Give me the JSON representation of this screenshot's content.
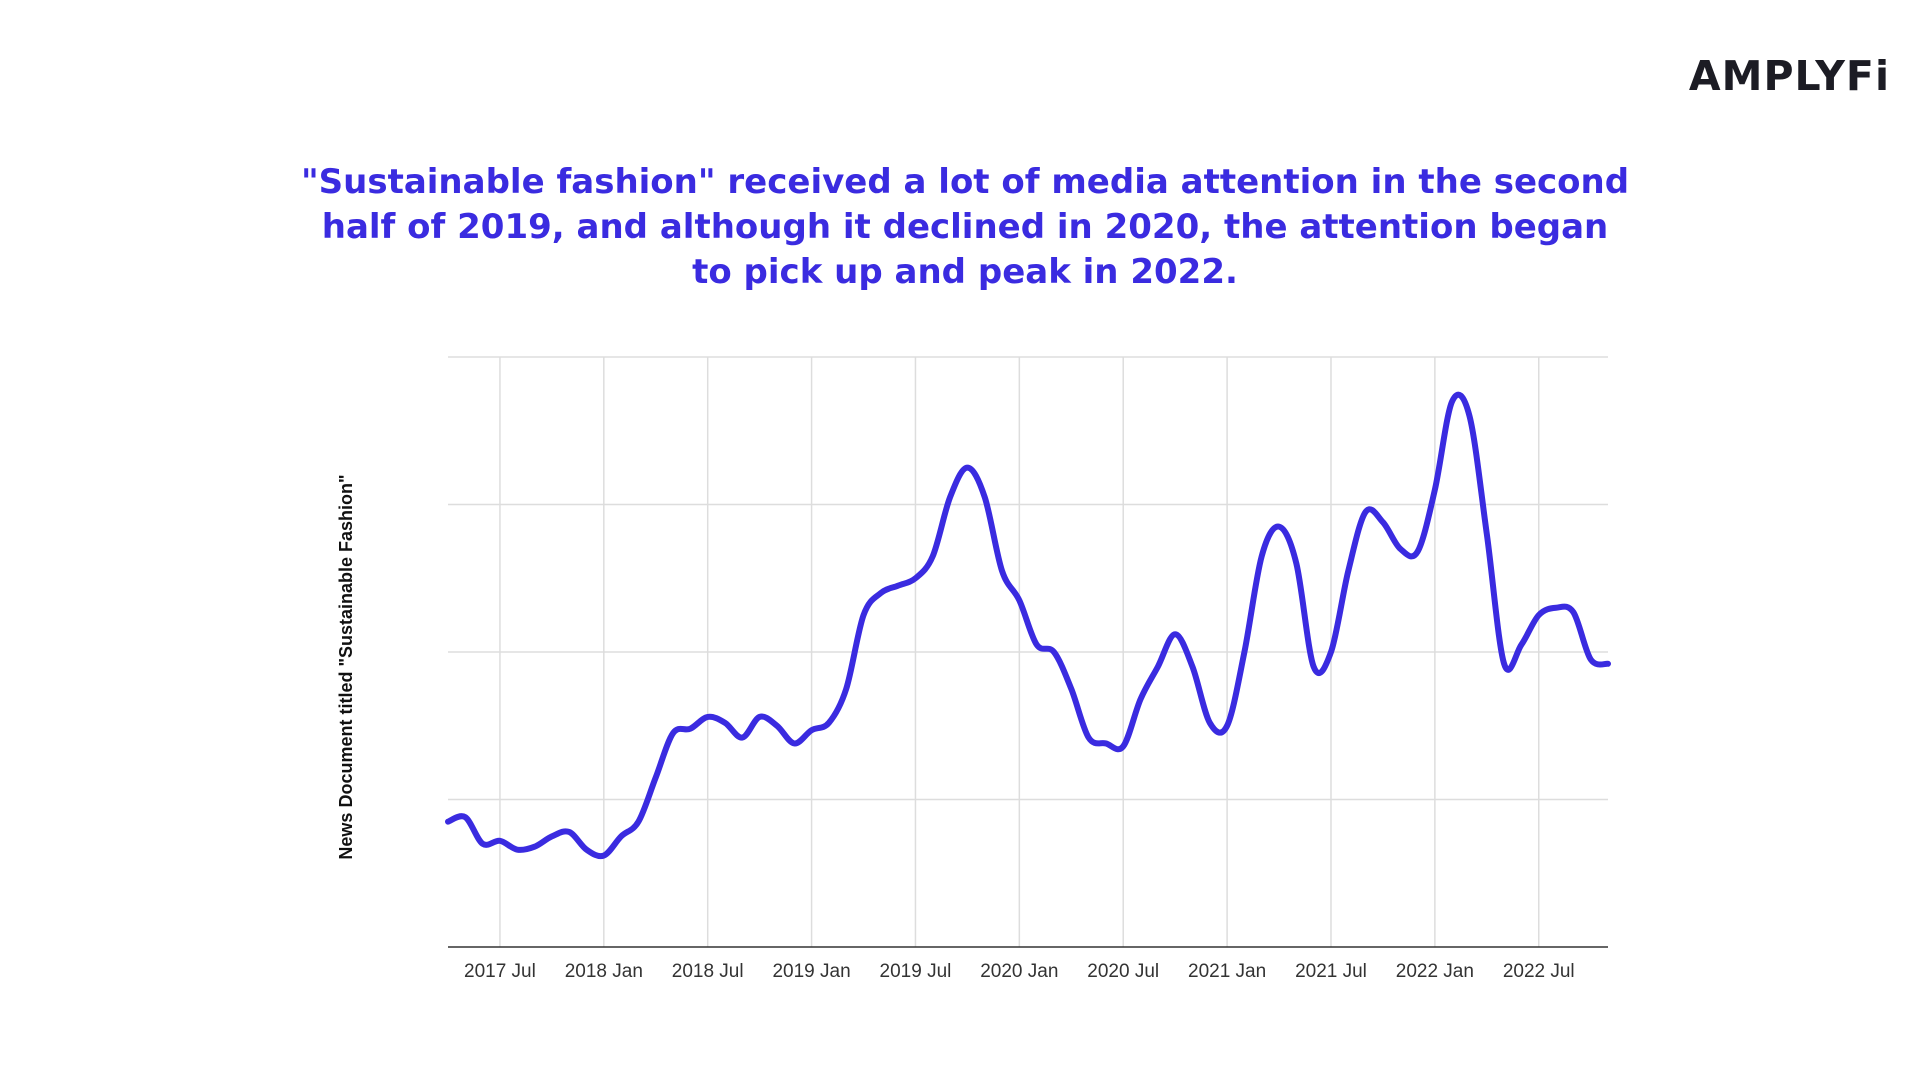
{
  "brand": {
    "logo_text": "AMPLYFi"
  },
  "headline": "\"Sustainable fashion\" received a lot of media attention in the second half of 2019, and although it declined in 2020, the attention began to pick up and peak in 2022.",
  "colors": {
    "headline": "#3a2be0",
    "line": "#3a2be0",
    "grid": "#dddddd",
    "axis": "#333333"
  },
  "chart_data": {
    "type": "line",
    "title": "",
    "xlabel": "",
    "ylabel": "News Document titled \"Sustainable Fashion\"",
    "grid": true,
    "legend": "none",
    "x_ticks": [
      "2017 Jul",
      "2018 Jan",
      "2018 Jul",
      "2019 Jan",
      "2019 Jul",
      "2020 Jan",
      "2020 Jul",
      "2021 Jan",
      "2021 Jul",
      "2022 Jan",
      "2022 Jul"
    ],
    "x_range": [
      "2017-04",
      "2022-11"
    ],
    "y_ticks_shown": false,
    "y_range": [
      0,
      4
    ],
    "series": [
      {
        "name": "",
        "x": [
          "2017-04",
          "2017-05",
          "2017-06",
          "2017-07",
          "2017-08",
          "2017-09",
          "2017-10",
          "2017-11",
          "2017-12",
          "2018-01",
          "2018-02",
          "2018-03",
          "2018-04",
          "2018-05",
          "2018-06",
          "2018-07",
          "2018-08",
          "2018-09",
          "2018-10",
          "2018-11",
          "2018-12",
          "2019-01",
          "2019-02",
          "2019-03",
          "2019-04",
          "2019-05",
          "2019-06",
          "2019-07",
          "2019-08",
          "2019-09",
          "2019-10",
          "2019-11",
          "2019-12",
          "2020-01",
          "2020-02",
          "2020-03",
          "2020-04",
          "2020-05",
          "2020-06",
          "2020-07",
          "2020-08",
          "2020-09",
          "2020-10",
          "2020-11",
          "2020-12",
          "2021-01",
          "2021-02",
          "2021-03",
          "2021-04",
          "2021-05",
          "2021-06",
          "2021-07",
          "2021-08",
          "2021-09",
          "2021-10",
          "2021-11",
          "2021-12",
          "2022-01",
          "2022-02",
          "2022-03",
          "2022-04",
          "2022-05",
          "2022-06",
          "2022-07",
          "2022-08",
          "2022-09",
          "2022-10",
          "2022-11"
        ],
        "values": [
          0.85,
          0.88,
          0.7,
          0.72,
          0.66,
          0.68,
          0.75,
          0.78,
          0.66,
          0.62,
          0.75,
          0.85,
          1.15,
          1.45,
          1.48,
          1.56,
          1.52,
          1.42,
          1.56,
          1.5,
          1.38,
          1.47,
          1.52,
          1.75,
          2.25,
          2.4,
          2.45,
          2.5,
          2.65,
          3.05,
          3.25,
          3.05,
          2.55,
          2.35,
          2.05,
          2.0,
          1.75,
          1.42,
          1.38,
          1.36,
          1.68,
          1.9,
          2.12,
          1.9,
          1.52,
          1.5,
          2.0,
          2.65,
          2.85,
          2.6,
          1.9,
          2.0,
          2.55,
          2.95,
          2.88,
          2.7,
          2.68,
          3.1,
          3.7,
          3.6,
          2.8,
          1.92,
          2.05,
          2.25,
          2.3,
          2.27,
          1.95,
          1.92
        ]
      }
    ]
  }
}
